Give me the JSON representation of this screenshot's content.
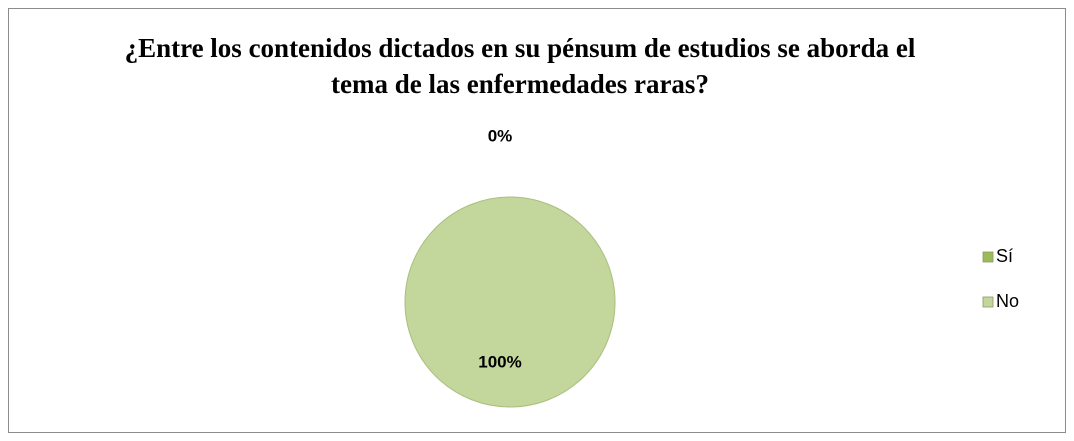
{
  "chart_data": {
    "type": "pie",
    "title": "¿Entre los contenidos dictados en su pénsum de estudios se aborda el tema de las enfermedades raras?",
    "categories": [
      "Sí",
      "No"
    ],
    "values": [
      0,
      100
    ],
    "value_labels": [
      "0%",
      "100%"
    ],
    "colors": [
      "#9bbb59",
      "#c3d69b"
    ],
    "legend": "right"
  }
}
